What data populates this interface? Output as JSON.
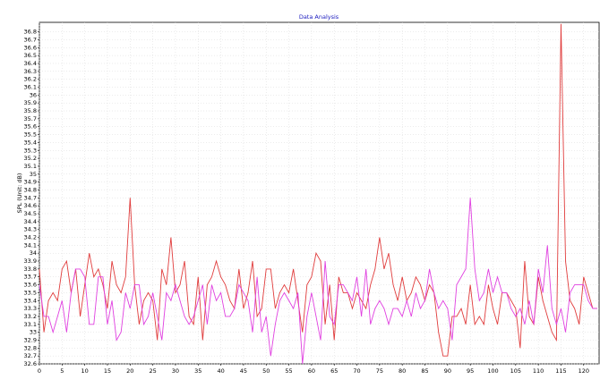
{
  "chart_data": {
    "type": "line",
    "title": "Data Analysis",
    "y_label": "SPL (Unit: dB)",
    "x": [
      0,
      1,
      2,
      3,
      4,
      5,
      6,
      7,
      8,
      9,
      10,
      11,
      12,
      13,
      14,
      15,
      16,
      17,
      18,
      19,
      20,
      21,
      22,
      23,
      24,
      25,
      26,
      27,
      28,
      29,
      30,
      31,
      32,
      33,
      34,
      35,
      36,
      37,
      38,
      39,
      40,
      41,
      42,
      43,
      44,
      45,
      46,
      47,
      48,
      49,
      50,
      51,
      52,
      53,
      54,
      55,
      56,
      57,
      58,
      59,
      60,
      61,
      62,
      63,
      64,
      65,
      66,
      67,
      68,
      69,
      70,
      71,
      72,
      73,
      74,
      75,
      76,
      77,
      78,
      79,
      80,
      81,
      82,
      83,
      84,
      85,
      86,
      87,
      88,
      89,
      90,
      91,
      92,
      93,
      94,
      95,
      96,
      97,
      98,
      99,
      100,
      101,
      102,
      103,
      104,
      105,
      106,
      107,
      108,
      109,
      110,
      111,
      112,
      113,
      114,
      115,
      116,
      117,
      118,
      119,
      120,
      121,
      122,
      123
    ],
    "series": [
      {
        "color": "#e03c3c",
        "values": [
          33.8,
          33.0,
          33.4,
          33.5,
          33.4,
          33.8,
          33.9,
          33.5,
          33.8,
          33.2,
          33.6,
          34.0,
          33.7,
          33.8,
          33.6,
          33.3,
          33.9,
          33.6,
          33.5,
          33.7,
          34.7,
          33.6,
          33.1,
          33.4,
          33.5,
          33.4,
          32.9,
          33.8,
          33.6,
          34.2,
          33.5,
          33.6,
          33.9,
          33.2,
          33.1,
          33.7,
          32.9,
          33.6,
          33.7,
          33.9,
          33.7,
          33.6,
          33.4,
          33.3,
          33.8,
          33.3,
          33.5,
          33.9,
          33.2,
          33.3,
          33.8,
          33.8,
          33.3,
          33.5,
          33.6,
          33.5,
          33.8,
          33.4,
          33.0,
          33.6,
          33.7,
          34.0,
          33.9,
          33.1,
          33.6,
          32.9,
          33.7,
          33.5,
          33.5,
          33.3,
          33.5,
          33.4,
          33.3,
          33.6,
          33.8,
          34.2,
          33.8,
          34.0,
          33.6,
          33.4,
          33.7,
          33.4,
          33.5,
          33.7,
          33.6,
          33.4,
          33.6,
          33.5,
          33.0,
          32.7,
          32.7,
          33.2,
          33.2,
          33.3,
          33.1,
          33.6,
          33.1,
          33.2,
          33.1,
          33.6,
          33.3,
          33.1,
          33.5,
          33.5,
          33.4,
          33.3,
          32.8,
          33.9,
          33.2,
          33.1,
          33.7,
          33.4,
          33.2,
          33.0,
          32.9,
          36.9,
          33.9,
          33.4,
          33.3,
          33.1,
          33.7,
          33.5,
          33.3,
          33.3
        ]
      },
      {
        "color": "#e040e0",
        "values": [
          33.6,
          33.2,
          33.2,
          33.0,
          33.2,
          33.4,
          33.0,
          33.5,
          33.8,
          33.8,
          33.7,
          33.1,
          33.1,
          33.7,
          33.7,
          33.1,
          33.4,
          32.9,
          33.0,
          33.5,
          33.3,
          33.6,
          33.6,
          33.1,
          33.2,
          33.5,
          33.2,
          32.9,
          33.5,
          33.4,
          33.6,
          33.4,
          33.2,
          33.1,
          33.2,
          33.4,
          33.6,
          33.1,
          33.6,
          33.4,
          33.5,
          33.2,
          33.2,
          33.3,
          33.6,
          33.5,
          33.4,
          33.0,
          33.7,
          33.0,
          33.2,
          32.7,
          33.1,
          33.4,
          33.5,
          33.4,
          33.3,
          33.5,
          32.6,
          33.2,
          33.5,
          33.2,
          32.9,
          33.9,
          33.2,
          33.1,
          33.6,
          33.6,
          33.5,
          33.4,
          33.7,
          33.2,
          33.8,
          33.1,
          33.3,
          33.4,
          33.3,
          33.1,
          33.3,
          33.3,
          33.2,
          33.4,
          33.2,
          33.5,
          33.3,
          33.4,
          33.8,
          33.5,
          33.3,
          33.4,
          33.3,
          32.9,
          33.6,
          33.7,
          33.8,
          34.7,
          33.8,
          33.4,
          33.5,
          33.8,
          33.5,
          33.7,
          33.5,
          33.5,
          33.3,
          33.2,
          33.3,
          33.1,
          33.4,
          33.1,
          33.8,
          33.5,
          34.1,
          33.3,
          33.1,
          33.3,
          33.0,
          33.5,
          33.6,
          33.6,
          33.6,
          33.4,
          33.3,
          33.3
        ]
      }
    ],
    "xlim": [
      0,
      123.4
    ],
    "xticks": [
      0,
      5,
      10,
      15,
      20,
      25,
      30,
      35,
      40,
      45,
      50,
      55,
      60,
      65,
      70,
      75,
      80,
      85,
      90,
      95,
      100,
      105,
      110,
      115,
      120
    ],
    "ylim": [
      32.6,
      36.92
    ],
    "yticks": [
      32.6,
      32.7,
      32.8,
      32.9,
      33,
      33.1,
      33.2,
      33.3,
      33.4,
      33.5,
      33.6,
      33.7,
      33.8,
      33.9,
      34,
      34.1,
      34.2,
      34.3,
      34.4,
      34.5,
      34.6,
      34.7,
      34.8,
      34.9,
      35,
      35.1,
      35.2,
      35.3,
      35.4,
      35.5,
      35.6,
      35.7,
      35.8,
      35.9,
      36,
      36.1,
      36.2,
      36.3,
      36.4,
      36.5,
      36.6,
      36.7,
      36.8
    ],
    "grid": true
  }
}
